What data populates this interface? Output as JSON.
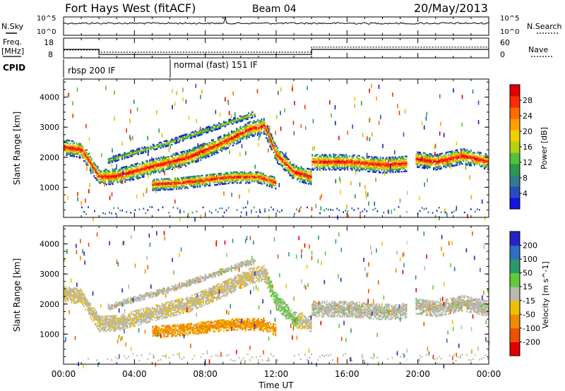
{
  "header": {
    "station": "Fort Hays West (fitACF)",
    "beam": "Beam 04",
    "date": "20/May/2013"
  },
  "noise_panel": {
    "left_label": "N.Sky",
    "right_label": "N.Search",
    "left_ticks": [
      "10^5",
      "10^0"
    ],
    "right_ticks": [
      "10^5",
      "10^0"
    ]
  },
  "freq_panel": {
    "left_label_line1": "Freq.",
    "left_label_line2": "[MHz]",
    "right_label": "Nave",
    "left_ticks": [
      "18",
      "8"
    ],
    "right_ticks": [
      "60",
      "0"
    ],
    "freq_mhz_steps": [
      [
        0,
        13
      ],
      [
        2,
        10
      ],
      [
        6,
        10
      ],
      [
        14,
        13
      ],
      [
        19.8,
        13
      ]
    ],
    "nave_steps": [
      [
        0,
        28
      ],
      [
        2,
        20
      ],
      [
        6,
        20
      ],
      [
        14,
        38
      ],
      [
        19.8,
        38
      ]
    ],
    "gaps_hours": [
      [
        19.4,
        19.8
      ]
    ]
  },
  "cpid_panel": {
    "label": "CPID",
    "segments": [
      {
        "start": 0,
        "label": "rbsp 200 IF"
      },
      {
        "start": 6,
        "label": "normal (fast) 151 IF"
      }
    ]
  },
  "chart_data": [
    {
      "type": "heatmap",
      "name": "power",
      "ylabel": "Slant Range [km]",
      "yticks": [
        1000,
        2000,
        3000,
        4000
      ],
      "ylim": [
        0,
        4600
      ],
      "xlim": [
        0,
        24
      ],
      "colorbar": {
        "label": "Power [dB]",
        "ticks": [
          "4",
          "8",
          "12",
          "16",
          "20",
          "24",
          "28"
        ],
        "colors": [
          "#1414e0",
          "#2a4cc0",
          "#2f7d8c",
          "#2a9a4a",
          "#55bf3a",
          "#b5d20e",
          "#f0d000",
          "#ffa000",
          "#ff6a00",
          "#ff2a00",
          "#e00000"
        ]
      }
    },
    {
      "type": "heatmap",
      "name": "velocity",
      "ylabel": "Slant Range [km]",
      "yticks": [
        1000,
        2000,
        3000,
        4000
      ],
      "ylim": [
        0,
        4600
      ],
      "xlim": [
        0,
        24
      ],
      "colorbar": {
        "label": "Velocity [m s^-1]",
        "ticks": [
          "200",
          "100",
          "50",
          "15",
          "-15",
          "-50",
          "-100",
          "-200"
        ],
        "colors": [
          "#2424c8",
          "#2e6ec8",
          "#2a9a6a",
          "#5ecb3c",
          "#b8b8b0",
          "#f0c000",
          "#f08a00",
          "#f05000",
          "#e00000"
        ]
      }
    }
  ],
  "xaxis": {
    "label": "Time UT",
    "ticks": [
      "00:00",
      "04:00",
      "08:00",
      "12:00",
      "16:00",
      "20:00",
      "00:00"
    ],
    "tick_hours": [
      0,
      4,
      8,
      12,
      16,
      20,
      24
    ]
  },
  "data_gaps_hours": [
    [
      19.4,
      19.8
    ]
  ],
  "echo_bands": [
    {
      "points": [
        [
          0,
          2350
        ],
        [
          1,
          2250
        ],
        [
          2,
          1350
        ],
        [
          3,
          1380
        ],
        [
          5,
          1700
        ],
        [
          7,
          2000
        ],
        [
          9,
          2500
        ],
        [
          10.5,
          2950
        ],
        [
          11.3,
          3050
        ],
        [
          12,
          2100
        ],
        [
          13,
          1500
        ],
        [
          14,
          1350
        ]
      ],
      "vel": "neg"
    },
    {
      "points": [
        [
          14,
          1850
        ],
        [
          16,
          1850
        ],
        [
          18,
          1750
        ],
        [
          19.4,
          1800
        ]
      ],
      "vel": "low"
    },
    {
      "points": [
        [
          19.8,
          1950
        ],
        [
          21,
          1850
        ],
        [
          22.5,
          2050
        ],
        [
          24,
          1850
        ]
      ],
      "vel": "low"
    },
    {
      "points": [
        [
          5,
          1100
        ],
        [
          6.5,
          1150
        ],
        [
          8,
          1250
        ],
        [
          9.5,
          1350
        ],
        [
          11,
          1350
        ],
        [
          12,
          1150
        ]
      ],
      "vel": "neg_strong"
    },
    {
      "points": [
        [
          2.5,
          1900
        ],
        [
          4.5,
          2250
        ],
        [
          6,
          2500
        ],
        [
          7,
          2700
        ],
        [
          8.5,
          3000
        ],
        [
          10,
          3300
        ],
        [
          10.8,
          3450
        ]
      ],
      "vel": "low"
    }
  ]
}
